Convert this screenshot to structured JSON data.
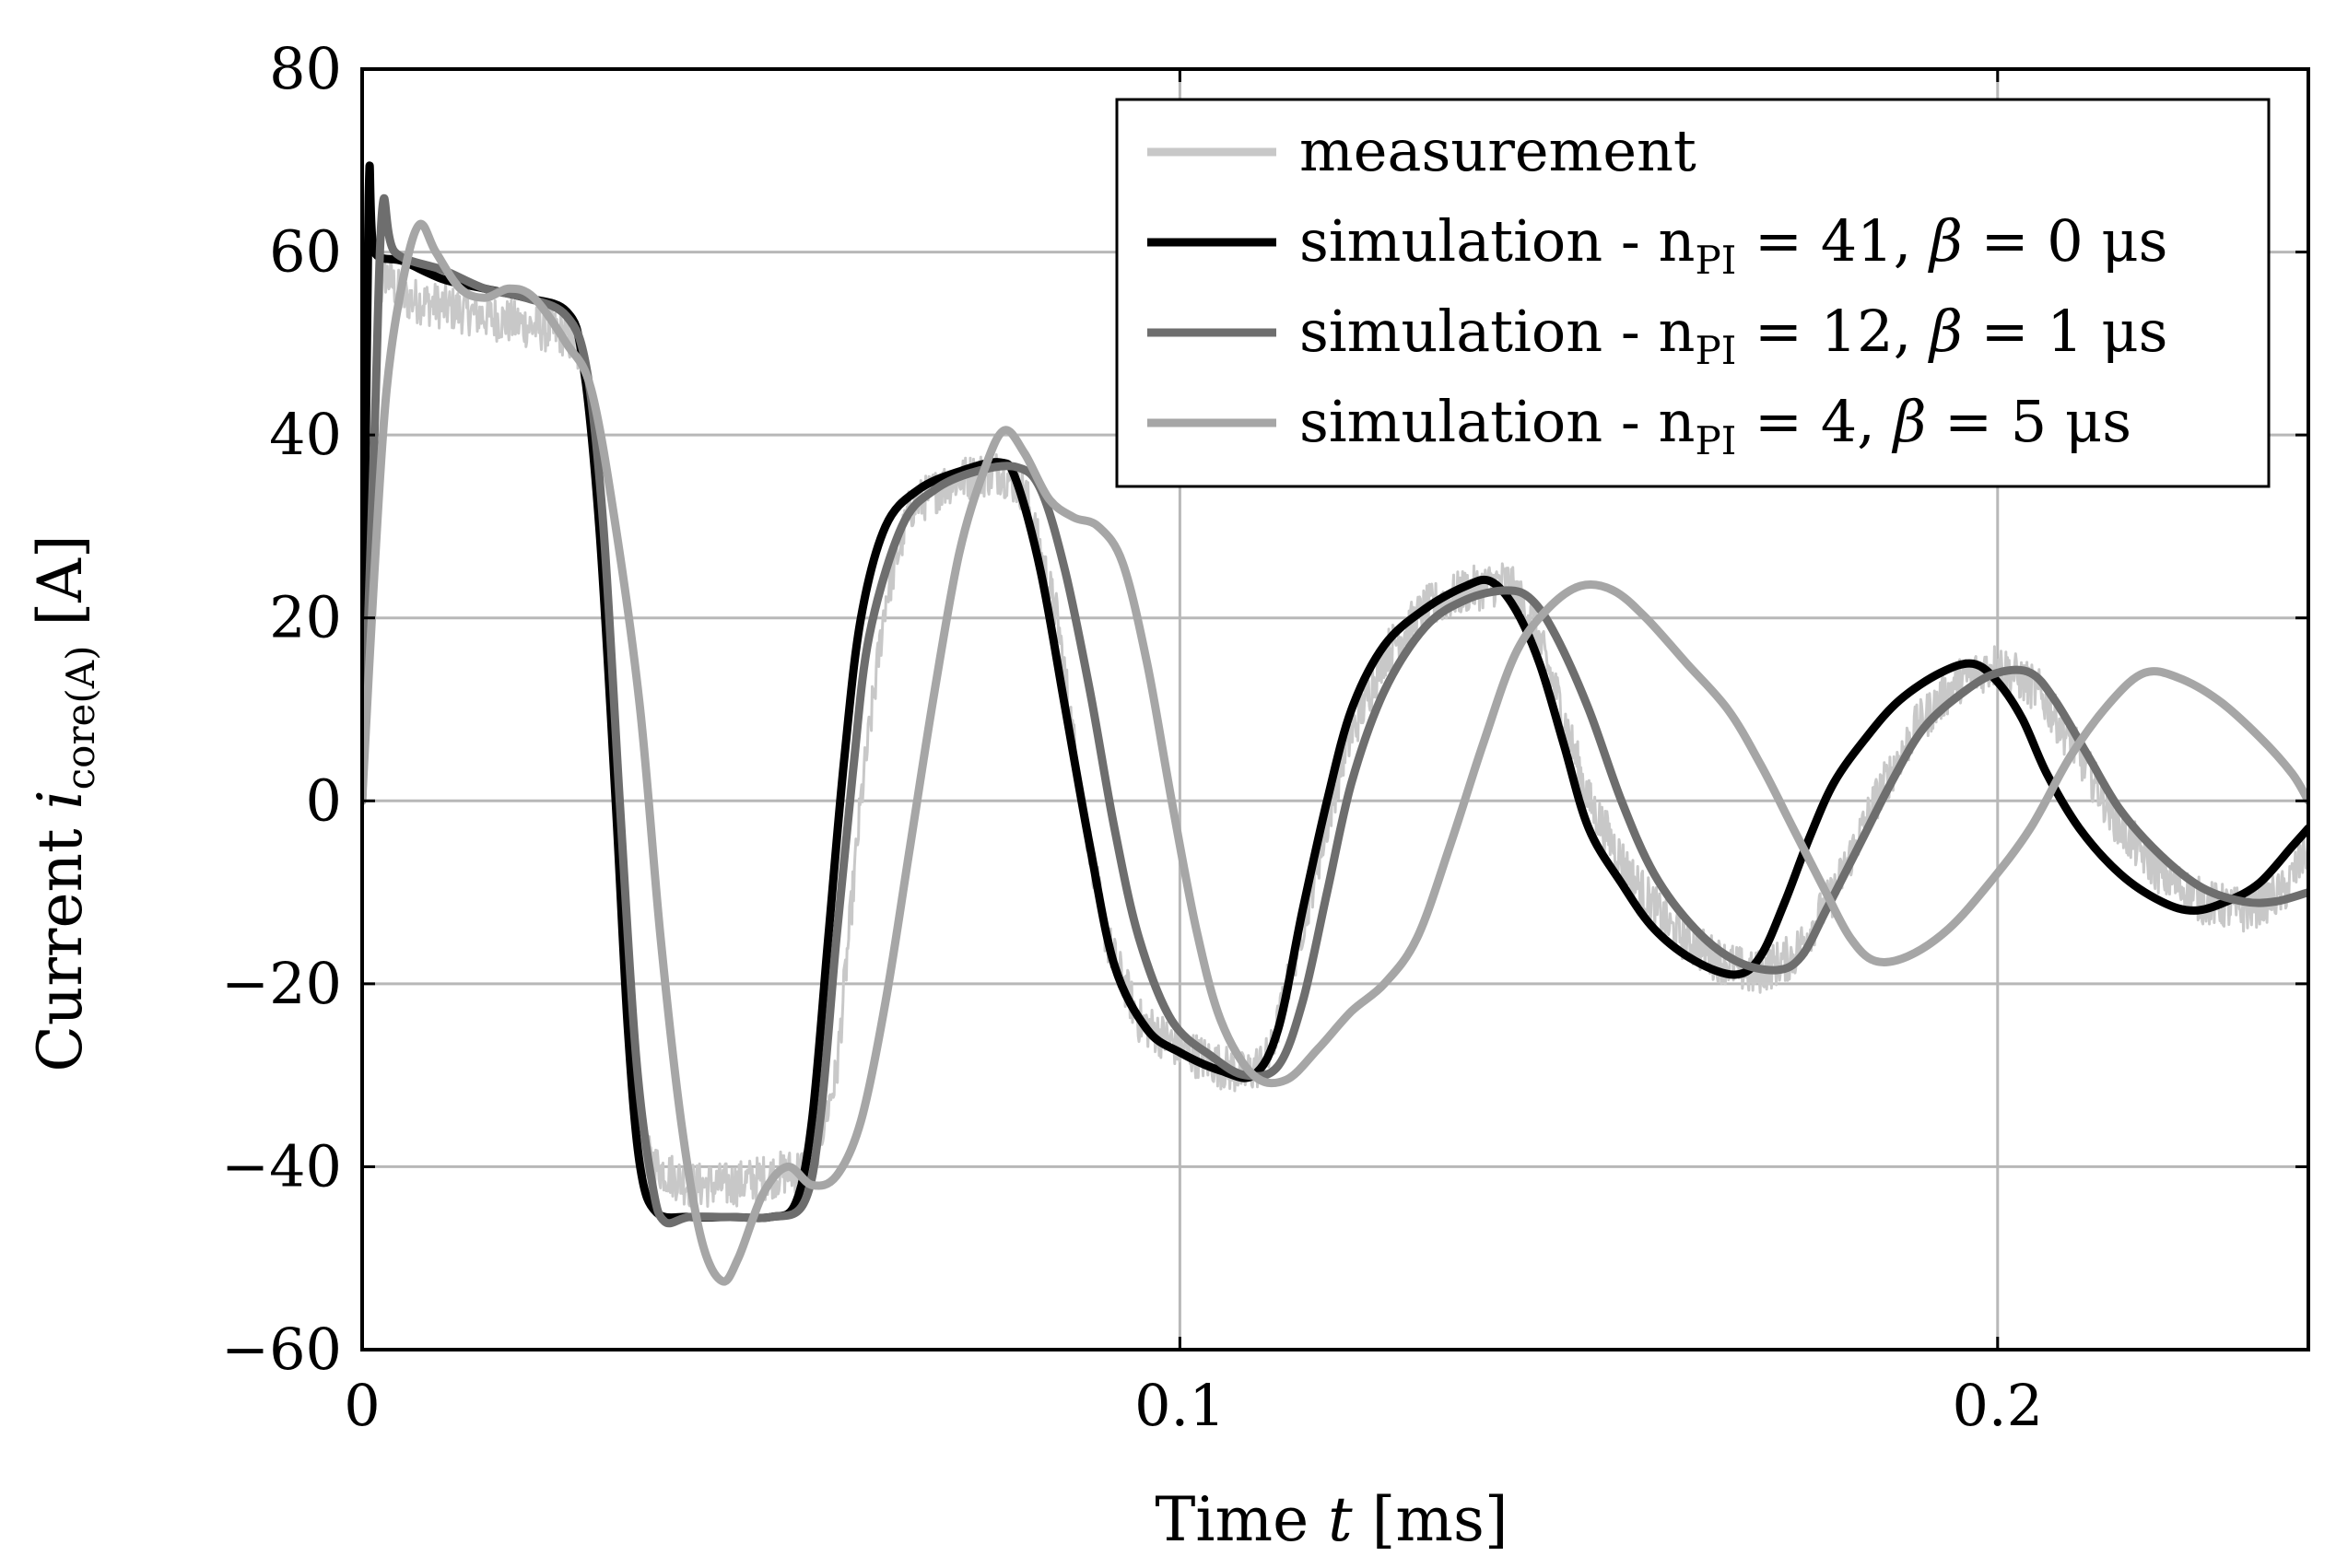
{
  "chart_data": {
    "type": "line",
    "title": "",
    "xlabel": {
      "prefix": "Time ",
      "var": "t",
      "unit": " [ms]"
    },
    "ylabel": {
      "prefix": "Current ",
      "var": "i",
      "sub": "core(A)",
      "unit": " [A]"
    },
    "xlim": [
      0,
      0.238
    ],
    "ylim": [
      -60,
      80
    ],
    "x_ticks": [
      0,
      0.1,
      0.2
    ],
    "x_tick_labels": [
      "0",
      "0.1",
      "0.2"
    ],
    "y_ticks": [
      -60,
      -40,
      -20,
      0,
      20,
      40,
      60,
      80
    ],
    "y_tick_labels": [
      "−60",
      "−40",
      "−20",
      "0",
      "20",
      "40",
      "60",
      "80"
    ],
    "grid": true,
    "legend_position": "top-right",
    "series": [
      {
        "name": "measurement",
        "label": {
          "text": "measurement"
        },
        "color": "#c8c8c8",
        "noise": 2.5,
        "points": [
          [
            0,
            0
          ],
          [
            0.0012,
            35
          ],
          [
            0.0025,
            58
          ],
          [
            0.005,
            55
          ],
          [
            0.01,
            54
          ],
          [
            0.015,
            53
          ],
          [
            0.02,
            52
          ],
          [
            0.025,
            51
          ],
          [
            0.0275,
            47
          ],
          [
            0.0295,
            30
          ],
          [
            0.031,
            0
          ],
          [
            0.0325,
            -25
          ],
          [
            0.034,
            -38
          ],
          [
            0.036,
            -40
          ],
          [
            0.04,
            -42
          ],
          [
            0.045,
            -42
          ],
          [
            0.05,
            -41
          ],
          [
            0.055,
            -40
          ],
          [
            0.058,
            -30
          ],
          [
            0.061,
            0
          ],
          [
            0.064,
            22
          ],
          [
            0.067,
            32
          ],
          [
            0.072,
            35
          ],
          [
            0.078,
            36
          ],
          [
            0.081,
            34
          ],
          [
            0.085,
            20
          ],
          [
            0.088,
            0
          ],
          [
            0.091,
            -15
          ],
          [
            0.095,
            -24
          ],
          [
            0.1,
            -27
          ],
          [
            0.105,
            -29
          ],
          [
            0.108,
            -30
          ],
          [
            0.111,
            -28
          ],
          [
            0.116,
            -10
          ],
          [
            0.12,
            5
          ],
          [
            0.125,
            16
          ],
          [
            0.13,
            21
          ],
          [
            0.135,
            23
          ],
          [
            0.14,
            24
          ],
          [
            0.143,
            20
          ],
          [
            0.146,
            12
          ],
          [
            0.15,
            0
          ],
          [
            0.155,
            -8
          ],
          [
            0.16,
            -14
          ],
          [
            0.165,
            -17
          ],
          [
            0.17,
            -19
          ],
          [
            0.175,
            -17
          ],
          [
            0.18,
            -10
          ],
          [
            0.185,
            0
          ],
          [
            0.19,
            8
          ],
          [
            0.195,
            13
          ],
          [
            0.2,
            15
          ],
          [
            0.205,
            12
          ],
          [
            0.21,
            5
          ],
          [
            0.215,
            -3
          ],
          [
            0.22,
            -8
          ],
          [
            0.225,
            -11
          ],
          [
            0.23,
            -12
          ],
          [
            0.235,
            -10
          ],
          [
            0.238,
            -5
          ]
        ]
      },
      {
        "name": "simulation - nPI = 41, β = 0 μs",
        "label": {
          "pre": "simulation - n",
          "sub": "PI",
          "mid": " = 41, ",
          "greek": "β",
          "post": " = 0 μs"
        },
        "color": "#000000",
        "points": [
          [
            0,
            0
          ],
          [
            0.0008,
            66
          ],
          [
            0.0015,
            60
          ],
          [
            0.005,
            59
          ],
          [
            0.01,
            57
          ],
          [
            0.015,
            56
          ],
          [
            0.02,
            55
          ],
          [
            0.025,
            53.5
          ],
          [
            0.027,
            48
          ],
          [
            0.029,
            30
          ],
          [
            0.031,
            0
          ],
          [
            0.0325,
            -25
          ],
          [
            0.034,
            -40
          ],
          [
            0.036,
            -45
          ],
          [
            0.04,
            -45.5
          ],
          [
            0.045,
            -45.5
          ],
          [
            0.05,
            -45.5
          ],
          [
            0.053,
            -44
          ],
          [
            0.055,
            -35
          ],
          [
            0.057,
            -15
          ],
          [
            0.059,
            5
          ],
          [
            0.061,
            20
          ],
          [
            0.064,
            30
          ],
          [
            0.068,
            34
          ],
          [
            0.073,
            36
          ],
          [
            0.078,
            37
          ],
          [
            0.08,
            35
          ],
          [
            0.083,
            25
          ],
          [
            0.086,
            10
          ],
          [
            0.089,
            -5
          ],
          [
            0.092,
            -18
          ],
          [
            0.096,
            -25
          ],
          [
            0.1,
            -27.5
          ],
          [
            0.105,
            -29.5
          ],
          [
            0.109,
            -30
          ],
          [
            0.112,
            -25
          ],
          [
            0.115,
            -12
          ],
          [
            0.118,
            0
          ],
          [
            0.121,
            10
          ],
          [
            0.125,
            17
          ],
          [
            0.13,
            21
          ],
          [
            0.135,
            23.5
          ],
          [
            0.138,
            24
          ],
          [
            0.141,
            21
          ],
          [
            0.144,
            15
          ],
          [
            0.147,
            6
          ],
          [
            0.15,
            -3
          ],
          [
            0.154,
            -9
          ],
          [
            0.158,
            -14
          ],
          [
            0.163,
            -17.5
          ],
          [
            0.168,
            -19
          ],
          [
            0.171,
            -17
          ],
          [
            0.174,
            -11
          ],
          [
            0.177,
            -4
          ],
          [
            0.18,
            2
          ],
          [
            0.184,
            7
          ],
          [
            0.188,
            11
          ],
          [
            0.193,
            14
          ],
          [
            0.197,
            15
          ],
          [
            0.2,
            13
          ],
          [
            0.203,
            9
          ],
          [
            0.206,
            3
          ],
          [
            0.21,
            -3
          ],
          [
            0.215,
            -8
          ],
          [
            0.22,
            -11
          ],
          [
            0.224,
            -12
          ],
          [
            0.228,
            -11
          ],
          [
            0.232,
            -9
          ],
          [
            0.236,
            -5
          ],
          [
            0.238,
            -3
          ]
        ]
      },
      {
        "name": "simulation - nPI = 12, β = 1 μs",
        "label": {
          "pre": "simulation - n",
          "sub": "PI",
          "mid": " = 12, ",
          "greek": "β",
          "post": " = 1 μs"
        },
        "color": "#6e6e6e",
        "points": [
          [
            0,
            0
          ],
          [
            0.0015,
            40
          ],
          [
            0.0025,
            65
          ],
          [
            0.004,
            60
          ],
          [
            0.01,
            58
          ],
          [
            0.015,
            56
          ],
          [
            0.02,
            55
          ],
          [
            0.025,
            53
          ],
          [
            0.0275,
            47
          ],
          [
            0.0295,
            30
          ],
          [
            0.0315,
            0
          ],
          [
            0.0335,
            -28
          ],
          [
            0.0355,
            -42
          ],
          [
            0.037,
            -46
          ],
          [
            0.04,
            -45.5
          ],
          [
            0.045,
            -45.5
          ],
          [
            0.05,
            -45.5
          ],
          [
            0.054,
            -44
          ],
          [
            0.056,
            -35
          ],
          [
            0.058,
            -15
          ],
          [
            0.06,
            3
          ],
          [
            0.062,
            18
          ],
          [
            0.066,
            30
          ],
          [
            0.07,
            34
          ],
          [
            0.075,
            36
          ],
          [
            0.08,
            36.5
          ],
          [
            0.083,
            34
          ],
          [
            0.086,
            25
          ],
          [
            0.089,
            12
          ],
          [
            0.092,
            -3
          ],
          [
            0.095,
            -15
          ],
          [
            0.099,
            -24
          ],
          [
            0.104,
            -28
          ],
          [
            0.108,
            -30
          ],
          [
            0.112,
            -29
          ],
          [
            0.115,
            -22
          ],
          [
            0.118,
            -10
          ],
          [
            0.121,
            2
          ],
          [
            0.125,
            12
          ],
          [
            0.13,
            19
          ],
          [
            0.135,
            22
          ],
          [
            0.14,
            23
          ],
          [
            0.143,
            22
          ],
          [
            0.146,
            18
          ],
          [
            0.15,
            10
          ],
          [
            0.154,
            0
          ],
          [
            0.158,
            -8
          ],
          [
            0.163,
            -14
          ],
          [
            0.168,
            -17.5
          ],
          [
            0.173,
            -18.5
          ],
          [
            0.176,
            -17
          ],
          [
            0.179,
            -12
          ],
          [
            0.183,
            -5
          ],
          [
            0.187,
            2
          ],
          [
            0.191,
            8
          ],
          [
            0.196,
            12
          ],
          [
            0.2,
            14
          ],
          [
            0.204,
            14
          ],
          [
            0.207,
            11
          ],
          [
            0.211,
            5
          ],
          [
            0.215,
            -1
          ],
          [
            0.22,
            -6
          ],
          [
            0.225,
            -9.5
          ],
          [
            0.23,
            -11
          ],
          [
            0.234,
            -11
          ],
          [
            0.238,
            -10
          ]
        ]
      },
      {
        "name": "simulation - nPI = 4, β = 5 μs",
        "label": {
          "pre": "simulation - n",
          "sub": "PI",
          "mid": " = 4, ",
          "greek": "β",
          "post": " = 5 μs"
        },
        "color": "#a6a6a6",
        "points": [
          [
            0,
            0
          ],
          [
            0.0015,
            25
          ],
          [
            0.003,
            45
          ],
          [
            0.005,
            57
          ],
          [
            0.007,
            63
          ],
          [
            0.009,
            60
          ],
          [
            0.012,
            56
          ],
          [
            0.015,
            55
          ],
          [
            0.018,
            56
          ],
          [
            0.021,
            55
          ],
          [
            0.025,
            50
          ],
          [
            0.028,
            45
          ],
          [
            0.031,
            30
          ],
          [
            0.034,
            10
          ],
          [
            0.0365,
            -15
          ],
          [
            0.039,
            -35
          ],
          [
            0.0415,
            -48
          ],
          [
            0.044,
            -52.5
          ],
          [
            0.046,
            -50
          ],
          [
            0.049,
            -43
          ],
          [
            0.052,
            -40
          ],
          [
            0.055,
            -42
          ],
          [
            0.058,
            -41
          ],
          [
            0.061,
            -35
          ],
          [
            0.064,
            -22
          ],
          [
            0.067,
            -5
          ],
          [
            0.07,
            12
          ],
          [
            0.073,
            27
          ],
          [
            0.076,
            36
          ],
          [
            0.0785,
            40.5
          ],
          [
            0.081,
            38
          ],
          [
            0.084,
            33
          ],
          [
            0.087,
            31
          ],
          [
            0.09,
            30
          ],
          [
            0.093,
            26
          ],
          [
            0.096,
            15
          ],
          [
            0.099,
            0
          ],
          [
            0.102,
            -14
          ],
          [
            0.105,
            -24
          ],
          [
            0.109,
            -30
          ],
          [
            0.113,
            -30.5
          ],
          [
            0.117,
            -27
          ],
          [
            0.121,
            -23
          ],
          [
            0.125,
            -20
          ],
          [
            0.129,
            -15
          ],
          [
            0.133,
            -5
          ],
          [
            0.137,
            6
          ],
          [
            0.141,
            16
          ],
          [
            0.145,
            21
          ],
          [
            0.149,
            23.5
          ],
          [
            0.153,
            23
          ],
          [
            0.157,
            20
          ],
          [
            0.162,
            15
          ],
          [
            0.167,
            10
          ],
          [
            0.171,
            4
          ],
          [
            0.175,
            -3
          ],
          [
            0.179,
            -10
          ],
          [
            0.182,
            -15
          ],
          [
            0.185,
            -17.5
          ],
          [
            0.189,
            -17
          ],
          [
            0.194,
            -14
          ],
          [
            0.199,
            -9
          ],
          [
            0.204,
            -3
          ],
          [
            0.209,
            5
          ],
          [
            0.214,
            11
          ],
          [
            0.218,
            14
          ],
          [
            0.222,
            13.5
          ],
          [
            0.227,
            11
          ],
          [
            0.232,
            7
          ],
          [
            0.236,
            3
          ],
          [
            0.238,
            0
          ]
        ]
      }
    ]
  }
}
